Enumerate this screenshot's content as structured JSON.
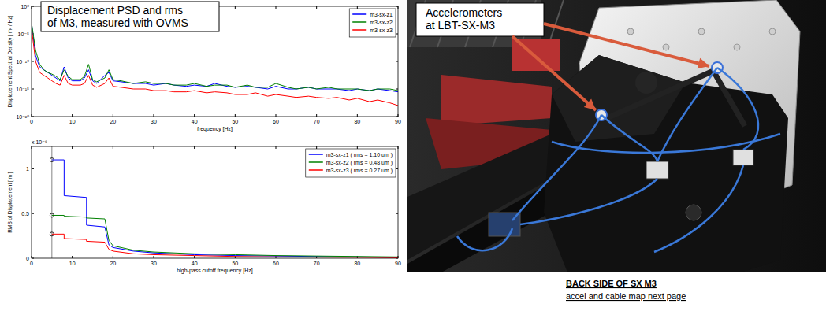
{
  "header": {
    "title_lines": [
      "Displacement PSD and rms",
      "of M3, measured with OVMS"
    ]
  },
  "photo": {
    "label_lines": [
      "Accelerometers",
      "at LBT-SX-M3"
    ],
    "caption_lines": [
      "BACK SIDE OF SX M3",
      "accel and cable map next page"
    ]
  },
  "chart_data": [
    {
      "type": "line",
      "x_label": "frequency [Hz]",
      "y_label": "Displacement Spectral Density [ m² / Hz]",
      "log": "y",
      "grid": false,
      "legend": "top-right",
      "xlim": [
        0,
        90
      ],
      "ylim": [
        1e-20,
        1
      ],
      "xticks": [
        0,
        10,
        20,
        30,
        40,
        50,
        60,
        70,
        80,
        90
      ],
      "yticks": [
        {
          "value": 1e-20,
          "label": "10⁻²⁰"
        },
        {
          "value": 1e-15,
          "label": "10⁻¹⁵"
        },
        {
          "value": 1e-10,
          "label": "10⁻¹⁰"
        },
        {
          "value": 1e-05,
          "label": "10⁻⁵"
        },
        {
          "value": 1,
          "label": "10⁰"
        }
      ],
      "x": [
        0,
        0.5,
        1,
        2,
        3,
        4,
        5,
        6,
        7,
        8,
        9,
        10,
        12,
        13,
        14,
        15,
        16,
        18,
        19,
        20,
        22,
        25,
        28,
        30,
        33,
        35,
        38,
        40,
        43,
        45,
        48,
        50,
        53,
        55,
        58,
        60,
        63,
        65,
        68,
        70,
        73,
        75,
        78,
        80,
        83,
        85,
        88,
        90
      ],
      "series": [
        {
          "name": "m3-sx-z1",
          "color": "#0000ff",
          "values": [
            0.001,
            1e-06,
            1e-09,
            1e-11,
            3e-12,
            1e-12,
            3e-13,
            1e-13,
            3e-14,
            1e-11,
            1e-13,
            3e-14,
            3e-14,
            1e-13,
            3e-12,
            3e-14,
            1e-14,
            3e-13,
            1e-12,
            3e-14,
            2e-14,
            1e-14,
            1e-14,
            5e-15,
            1e-14,
            5e-15,
            3e-15,
            5e-15,
            3e-15,
            1e-14,
            3e-15,
            2e-15,
            3e-15,
            2e-15,
            1e-15,
            3e-15,
            1e-15,
            1e-15,
            2e-15,
            1e-15,
            1e-15,
            1e-15,
            5e-16,
            1e-15,
            5e-16,
            1e-15,
            5e-16,
            3e-16
          ]
        },
        {
          "name": "m3-sx-z2",
          "color": "#008000",
          "values": [
            0.001,
            3e-06,
            1e-08,
            3e-11,
            3e-12,
            1e-12,
            5e-13,
            2e-13,
            5e-14,
            3e-12,
            2e-13,
            5e-14,
            5e-14,
            2e-13,
            3e-11,
            5e-14,
            2e-14,
            1e-13,
            3e-12,
            5e-14,
            3e-14,
            1e-14,
            2e-14,
            1e-14,
            1e-14,
            5e-15,
            5e-15,
            1e-14,
            3e-15,
            5e-15,
            5e-15,
            2e-15,
            5e-15,
            2e-15,
            2e-15,
            1e-14,
            2e-15,
            1e-15,
            2e-15,
            1e-15,
            2e-15,
            1e-15,
            1e-15,
            1e-15,
            5e-16,
            1e-15,
            1e-15,
            5e-16
          ]
        },
        {
          "name": "m3-sx-z3",
          "color": "#ff0000",
          "values": [
            0.0001,
            1e-07,
            1e-10,
            1e-12,
            3e-13,
            1e-13,
            3e-14,
            1e-14,
            5e-15,
            3e-13,
            1e-14,
            5e-15,
            5e-15,
            1e-14,
            3e-13,
            5e-15,
            2e-15,
            1e-14,
            1e-13,
            3e-15,
            2e-15,
            1e-15,
            1e-15,
            5e-16,
            5e-16,
            3e-16,
            3e-16,
            5e-16,
            2e-16,
            3e-16,
            2e-16,
            1e-16,
            1e-16,
            2e-16,
            5e-17,
            1e-16,
            5e-17,
            3e-17,
            5e-17,
            3e-17,
            2e-17,
            3e-17,
            1e-17,
            2e-17,
            5e-18,
            1e-17,
            3e-18,
            1e-18
          ]
        }
      ]
    },
    {
      "type": "line",
      "x_label": "high-pass cutoff frequency [Hz]",
      "y_label": "RMS of Displacement [ m ]",
      "y_offset_label": "x 10⁻⁶",
      "grid": false,
      "legend": "top-right",
      "xlim": [
        0,
        90
      ],
      "ylim": [
        0,
        1.25e-06
      ],
      "xticks": [
        0,
        10,
        20,
        30,
        40,
        50,
        60,
        70,
        80,
        90
      ],
      "yticks": [
        0,
        {
          "value": 5e-07,
          "label": "0.5"
        },
        {
          "value": 1e-06,
          "label": "1"
        }
      ],
      "vline_x": 5,
      "x": [
        5,
        8,
        8,
        13.5,
        13.5,
        18,
        19,
        20,
        25,
        30,
        40,
        50,
        60,
        70,
        80,
        90
      ],
      "series": [
        {
          "name": "m3-sx-z1 ( rms = 1.10 um )",
          "color": "#0000ff",
          "values": [
            1.1e-06,
            1.1e-06,
            7e-07,
            6.8e-07,
            3.7e-07,
            3.5e-07,
            1.5e-07,
            1.2e-07,
            8e-08,
            6e-08,
            4e-08,
            3e-08,
            2.5e-08,
            2e-08,
            1.5e-08,
            1e-08
          ]
        },
        {
          "name": "m3-sx-z2 ( rms = 0.48 um )",
          "color": "#008000",
          "values": [
            4.8e-07,
            4.8e-07,
            4.7e-07,
            4.6e-07,
            4.5e-07,
            4.4e-07,
            2e-07,
            1.4e-07,
            9e-08,
            7e-08,
            5e-08,
            4e-08,
            3e-08,
            2.5e-08,
            2e-08,
            1.5e-08
          ]
        },
        {
          "name": "m3-sx-z3 ( rms = 0.27 um )",
          "color": "#ff0000",
          "values": [
            2.7e-07,
            2.7e-07,
            2.2e-07,
            2.1e-07,
            1.9e-07,
            1.8e-07,
            1e-07,
            8e-08,
            5e-08,
            4e-08,
            3e-08,
            2e-08,
            1.5e-08,
            1.2e-08,
            1e-08,
            5e-09
          ]
        }
      ]
    }
  ]
}
